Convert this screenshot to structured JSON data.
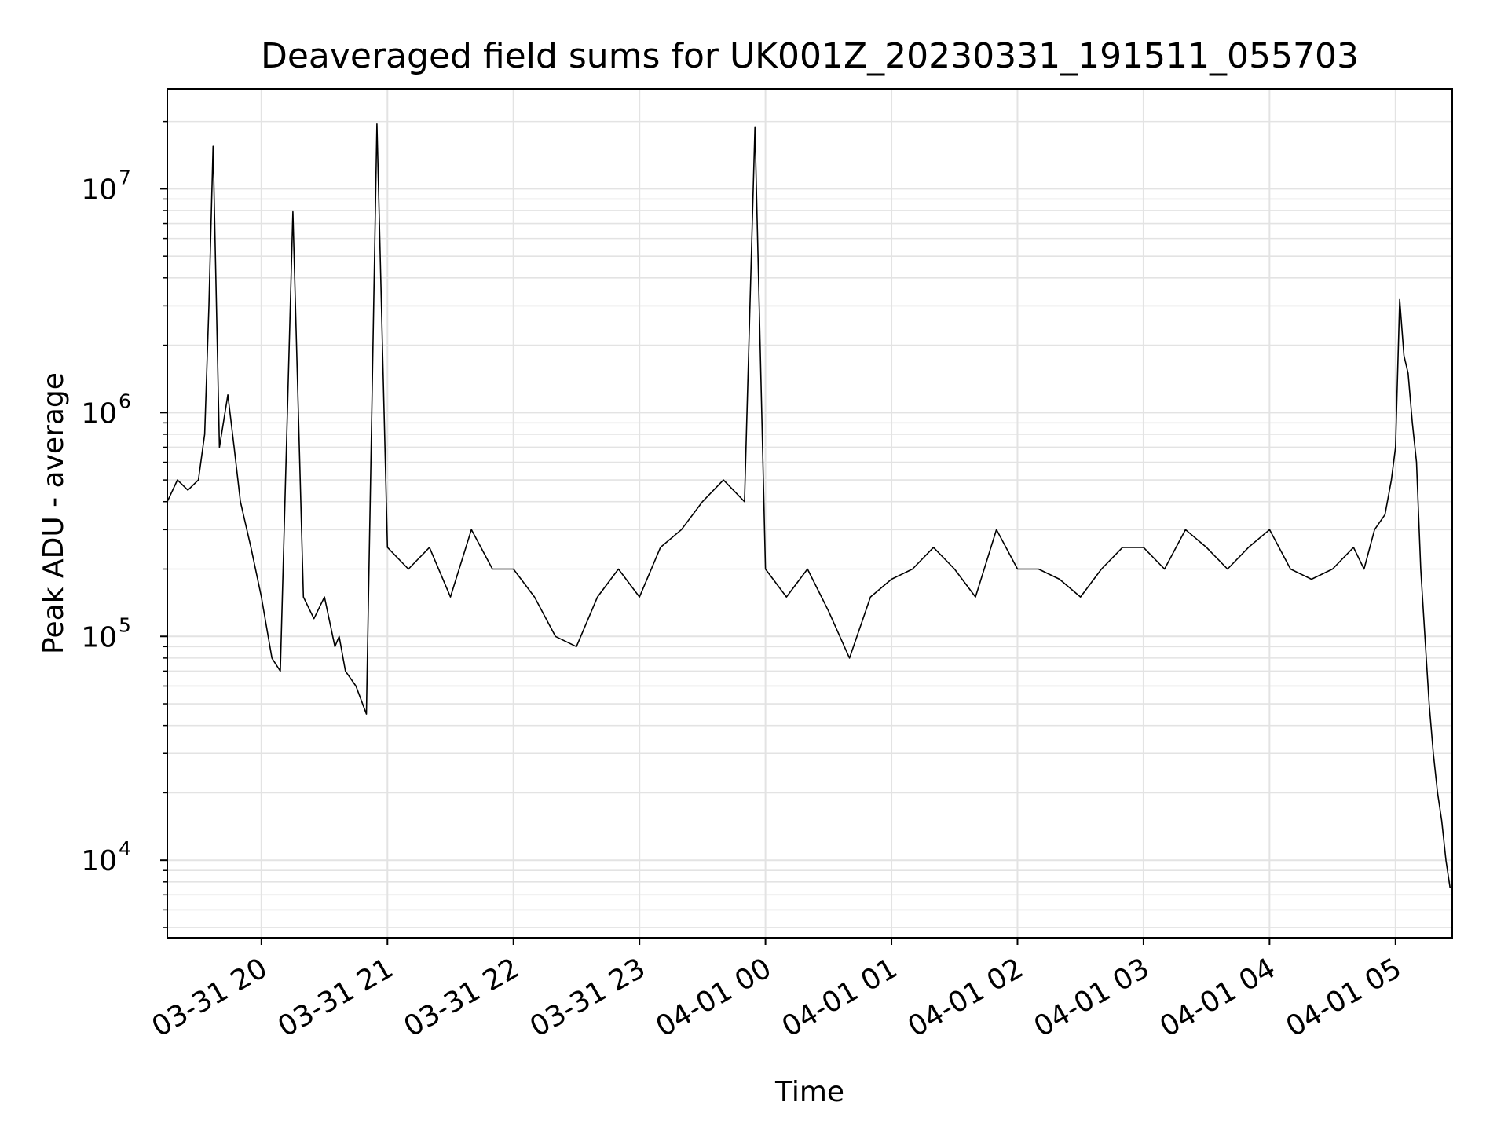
{
  "chart_data": {
    "type": "line",
    "title": "Deaveraged field sums for UK001Z_20230331_191511_055703",
    "xlabel": "Time",
    "ylabel": "Peak ADU - average",
    "y_scale": "log",
    "ylim": [
      4500,
      28000000
    ],
    "xlim": [
      "2023-03-31 19:15:11",
      "2023-04-01 05:27:00"
    ],
    "grid": true,
    "grid_minor": true,
    "x_tick_labels": [
      "03-31 20",
      "03-31 21",
      "03-31 22",
      "03-31 23",
      "04-01 00",
      "04-01 01",
      "04-01 02",
      "04-01 03",
      "04-01 04",
      "04-01 05"
    ],
    "x_tick_times": [
      "2023-03-31 20:00:00",
      "2023-03-31 21:00:00",
      "2023-03-31 22:00:00",
      "2023-03-31 23:00:00",
      "2023-04-01 00:00:00",
      "2023-04-01 01:00:00",
      "2023-04-01 02:00:00",
      "2023-04-01 03:00:00",
      "2023-04-01 04:00:00",
      "2023-04-01 05:00:00"
    ],
    "y_ticks": [
      {
        "base": "10",
        "exp": "4",
        "value": 10000
      },
      {
        "base": "10",
        "exp": "5",
        "value": 100000
      },
      {
        "base": "10",
        "exp": "6",
        "value": 1000000
      },
      {
        "base": "10",
        "exp": "7",
        "value": 10000000
      }
    ],
    "line_color": "#000000",
    "grid_color": "#e3e3e3",
    "series": [
      {
        "x": [
          "2023-03-31 19:15:11",
          "2023-03-31 19:20:00",
          "2023-03-31 19:25:00",
          "2023-03-31 19:30:00",
          "2023-03-31 19:33:00",
          "2023-03-31 19:35:00",
          "2023-03-31 19:37:00",
          "2023-03-31 19:40:00",
          "2023-03-31 19:44:00",
          "2023-03-31 19:47:00",
          "2023-03-31 19:50:00",
          "2023-03-31 19:55:00",
          "2023-03-31 20:00:00",
          "2023-03-31 20:05:00",
          "2023-03-31 20:09:00",
          "2023-03-31 20:15:00",
          "2023-03-31 20:20:00",
          "2023-03-31 20:25:00",
          "2023-03-31 20:30:00",
          "2023-03-31 20:35:00",
          "2023-03-31 20:37:00",
          "2023-03-31 20:40:00",
          "2023-03-31 20:45:00",
          "2023-03-31 20:50:00",
          "2023-03-31 20:55:00",
          "2023-03-31 21:00:00",
          "2023-03-31 21:10:00",
          "2023-03-31 21:20:00",
          "2023-03-31 21:30:00",
          "2023-03-31 21:40:00",
          "2023-03-31 21:50:00",
          "2023-03-31 22:00:00",
          "2023-03-31 22:10:00",
          "2023-03-31 22:20:00",
          "2023-03-31 22:30:00",
          "2023-03-31 22:40:00",
          "2023-03-31 22:50:00",
          "2023-03-31 23:00:00",
          "2023-03-31 23:10:00",
          "2023-03-31 23:20:00",
          "2023-03-31 23:30:00",
          "2023-03-31 23:40:00",
          "2023-03-31 23:50:00",
          "2023-03-31 23:55:00",
          "2023-04-01 00:00:00",
          "2023-04-01 00:10:00",
          "2023-04-01 00:20:00",
          "2023-04-01 00:30:00",
          "2023-04-01 00:40:00",
          "2023-04-01 00:50:00",
          "2023-04-01 01:00:00",
          "2023-04-01 01:10:00",
          "2023-04-01 01:20:00",
          "2023-04-01 01:30:00",
          "2023-04-01 01:40:00",
          "2023-04-01 01:50:00",
          "2023-04-01 02:00:00",
          "2023-04-01 02:10:00",
          "2023-04-01 02:20:00",
          "2023-04-01 02:30:00",
          "2023-04-01 02:40:00",
          "2023-04-01 02:50:00",
          "2023-04-01 03:00:00",
          "2023-04-01 03:10:00",
          "2023-04-01 03:20:00",
          "2023-04-01 03:30:00",
          "2023-04-01 03:40:00",
          "2023-04-01 03:50:00",
          "2023-04-01 04:00:00",
          "2023-04-01 04:10:00",
          "2023-04-01 04:20:00",
          "2023-04-01 04:30:00",
          "2023-04-01 04:40:00",
          "2023-04-01 04:45:00",
          "2023-04-01 04:50:00",
          "2023-04-01 04:55:00",
          "2023-04-01 04:58:00",
          "2023-04-01 05:00:00",
          "2023-04-01 05:02:00",
          "2023-04-01 05:04:00",
          "2023-04-01 05:06:00",
          "2023-04-01 05:08:00",
          "2023-04-01 05:10:00",
          "2023-04-01 05:12:00",
          "2023-04-01 05:14:00",
          "2023-04-01 05:16:00",
          "2023-04-01 05:18:00",
          "2023-04-01 05:20:00",
          "2023-04-01 05:22:00",
          "2023-04-01 05:24:00",
          "2023-04-01 05:26:00"
        ],
        "y": [
          400000,
          500000,
          450000,
          500000,
          800000,
          3000000,
          15500000,
          700000,
          1200000,
          700000,
          400000,
          250000,
          150000,
          80000,
          70000,
          7900000,
          150000,
          120000,
          150000,
          90000,
          100000,
          70000,
          60000,
          45000,
          19500000,
          250000,
          200000,
          250000,
          150000,
          300000,
          200000,
          200000,
          150000,
          100000,
          90000,
          150000,
          200000,
          150000,
          250000,
          300000,
          400000,
          500000,
          400000,
          18800000,
          200000,
          150000,
          200000,
          130000,
          80000,
          150000,
          180000,
          200000,
          250000,
          200000,
          150000,
          300000,
          200000,
          200000,
          180000,
          150000,
          200000,
          250000,
          250000,
          200000,
          300000,
          250000,
          200000,
          250000,
          300000,
          200000,
          180000,
          200000,
          250000,
          200000,
          300000,
          350000,
          500000,
          700000,
          3200000,
          1800000,
          1500000,
          900000,
          600000,
          200000,
          100000,
          50000,
          30000,
          20000,
          15000,
          10000,
          7500
        ]
      }
    ]
  }
}
